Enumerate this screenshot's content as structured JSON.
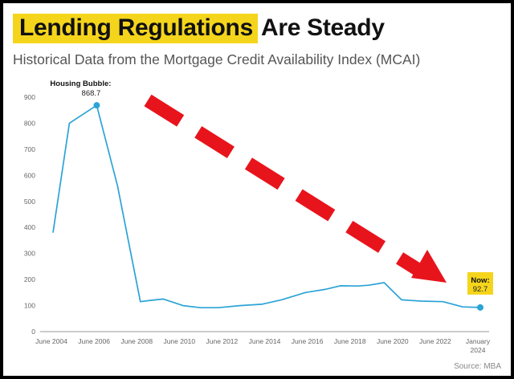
{
  "header": {
    "title_highlight": "Lending Regulations",
    "title_rest": "Are Steady",
    "subtitle": "Historical Data from the Mortgage Credit Availability Index (MCAI)"
  },
  "footer": {
    "source": "Source: MBA"
  },
  "colors": {
    "line": "#2ba3d6",
    "highlight": "#f5d51c",
    "arrow": "#e8141c"
  },
  "chart_data": {
    "type": "line",
    "title": "Lending Regulations Are Steady",
    "xlabel": "",
    "ylabel": "",
    "ylim": [
      0,
      900
    ],
    "yticks": [
      0,
      100,
      200,
      300,
      400,
      500,
      600,
      700,
      800,
      900
    ],
    "grid": false,
    "xtick_labels": [
      "June 2004",
      "June 2006",
      "June 2008",
      "June 2010",
      "June 2012",
      "June 2014",
      "June 2016",
      "June 2018",
      "June 2020",
      "June 2022",
      "January 2024"
    ],
    "series": [
      {
        "name": "MCAI",
        "x": [
          2004.45,
          2005.2,
          2006.45,
          2007.4,
          2008.45,
          2008.9,
          2009.5,
          2010.4,
          2011.2,
          2012.0,
          2013.0,
          2014.0,
          2014.9,
          2016.0,
          2016.9,
          2017.6,
          2018.4,
          2018.9,
          2019.6,
          2020.4,
          2021.3,
          2022.3,
          2023.2,
          2024.0
        ],
        "values": [
          380,
          800,
          868.7,
          560,
          115,
          120,
          125,
          100,
          92,
          92,
          100,
          105,
          122,
          150,
          162,
          176,
          175,
          178,
          188,
          122,
          117,
          115,
          95,
          92.7
        ]
      }
    ],
    "annotations": {
      "peak": {
        "label": "Housing Bubble:",
        "value_text": "868.7",
        "x": 2006.45,
        "y": 868.7
      },
      "now": {
        "label": "Now:",
        "value_text": "92.7",
        "x": 2024.0,
        "y": 92.7
      }
    }
  }
}
